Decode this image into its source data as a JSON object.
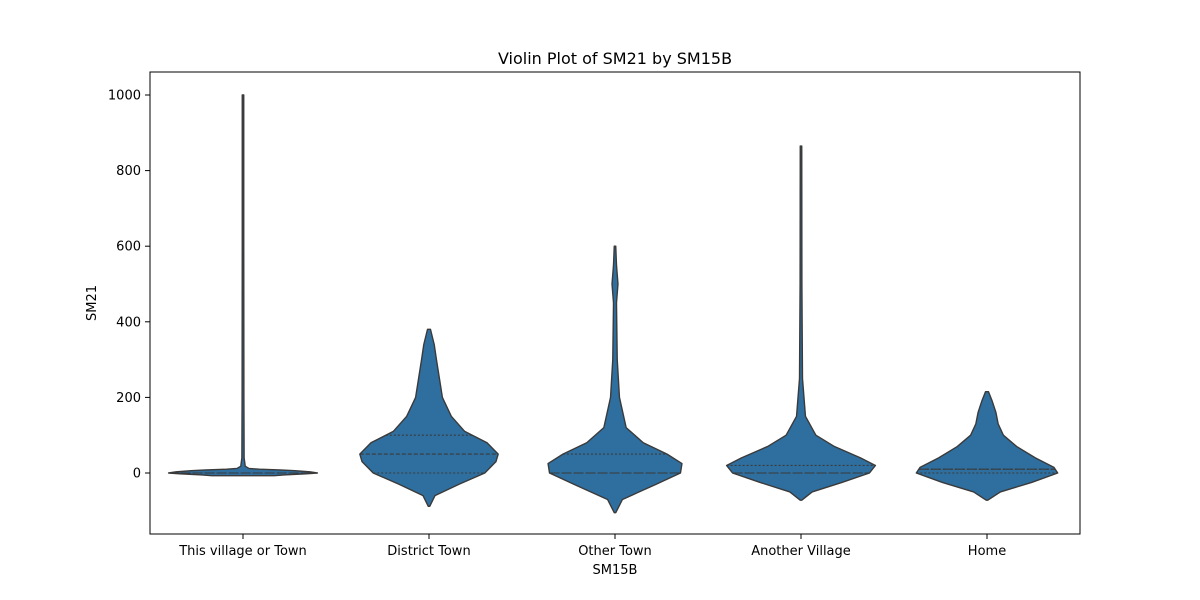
{
  "chart_data": {
    "type": "violin",
    "title": "Violin Plot of SM21 by SM15B",
    "xlabel": "SM15B",
    "ylabel": "SM21",
    "ylim": [
      -160,
      1060
    ],
    "yticks": [
      0,
      200,
      400,
      600,
      800,
      1000
    ],
    "grid": false,
    "inner": "quartile",
    "color": "#2f6f9f",
    "edge_color": "#3a3a3a",
    "categories": [
      "This village or Town",
      "District Town",
      "Other Town",
      "Another Village",
      "Home"
    ],
    "series": [
      {
        "category": "This village or Town",
        "min": 0,
        "max": 1000,
        "quartiles": [
          0,
          0,
          0
        ],
        "profile": [
          [
            -7,
            0.42
          ],
          [
            -5,
            0.55
          ],
          [
            -2,
            0.85
          ],
          [
            0,
            1.0
          ],
          [
            3,
            0.9
          ],
          [
            6,
            0.7
          ],
          [
            8,
            0.5
          ],
          [
            10,
            0.22
          ],
          [
            12,
            0.08
          ],
          [
            18,
            0.03
          ],
          [
            40,
            0.015
          ],
          [
            200,
            0.012
          ],
          [
            600,
            0.01
          ],
          [
            1000,
            0.01
          ]
        ]
      },
      {
        "category": "District Town",
        "min": 0,
        "max": 380,
        "quartiles": [
          0,
          50,
          100
        ],
        "profile": [
          [
            -88,
            0.01
          ],
          [
            -60,
            0.08
          ],
          [
            -30,
            0.4
          ],
          [
            0,
            0.75
          ],
          [
            30,
            0.9
          ],
          [
            50,
            0.93
          ],
          [
            80,
            0.78
          ],
          [
            110,
            0.48
          ],
          [
            150,
            0.3
          ],
          [
            200,
            0.18
          ],
          [
            250,
            0.14
          ],
          [
            300,
            0.1
          ],
          [
            340,
            0.07
          ],
          [
            380,
            0.02
          ]
        ]
      },
      {
        "category": "Other Town",
        "min": 0,
        "max": 600,
        "quartiles": [
          0,
          0,
          50
        ],
        "profile": [
          [
            -105,
            0.01
          ],
          [
            -70,
            0.1
          ],
          [
            -30,
            0.55
          ],
          [
            0,
            0.88
          ],
          [
            25,
            0.9
          ],
          [
            50,
            0.7
          ],
          [
            80,
            0.38
          ],
          [
            120,
            0.15
          ],
          [
            200,
            0.06
          ],
          [
            300,
            0.03
          ],
          [
            450,
            0.02
          ],
          [
            500,
            0.04
          ],
          [
            550,
            0.02
          ],
          [
            600,
            0.01
          ]
        ]
      },
      {
        "category": "Another Village",
        "min": 0,
        "max": 865,
        "quartiles": [
          0,
          0,
          20
        ],
        "profile": [
          [
            -72,
            0.01
          ],
          [
            -50,
            0.15
          ],
          [
            -25,
            0.55
          ],
          [
            0,
            0.92
          ],
          [
            20,
            1.0
          ],
          [
            40,
            0.8
          ],
          [
            70,
            0.45
          ],
          [
            100,
            0.2
          ],
          [
            150,
            0.06
          ],
          [
            250,
            0.02
          ],
          [
            500,
            0.012
          ],
          [
            865,
            0.01
          ]
        ]
      },
      {
        "category": "Home",
        "min": 0,
        "max": 215,
        "quartiles": [
          0,
          10,
          10
        ],
        "profile": [
          [
            -72,
            0.01
          ],
          [
            -50,
            0.18
          ],
          [
            -25,
            0.6
          ],
          [
            0,
            0.95
          ],
          [
            15,
            0.9
          ],
          [
            40,
            0.65
          ],
          [
            70,
            0.4
          ],
          [
            100,
            0.22
          ],
          [
            130,
            0.15
          ],
          [
            160,
            0.12
          ],
          [
            190,
            0.07
          ],
          [
            215,
            0.02
          ]
        ]
      }
    ]
  }
}
